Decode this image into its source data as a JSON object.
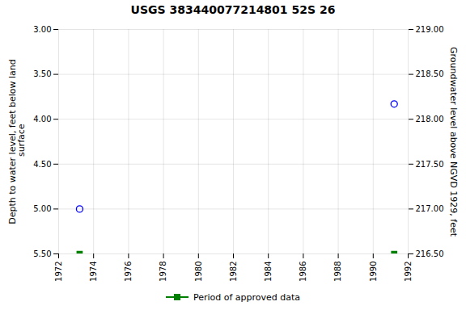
{
  "chart_data": {
    "type": "scatter",
    "title": "USGS 383440077214801 52S 26",
    "ylabel": "Depth to water level, feet below land\n surface",
    "y2label": "Groundwater level above NGVD 1929, feet",
    "x": [
      1973.2,
      1991.2
    ],
    "series": [
      {
        "color": "#0000ff",
        "marker": "circle",
        "values": [
          5.0,
          3.83
        ]
      },
      {
        "name": "Period of approved data",
        "color": "#008000",
        "marker": "square",
        "values": [
          5.5,
          5.5
        ]
      }
    ],
    "xlim": [
      1972,
      1992
    ],
    "xticks": [
      1972,
      1974,
      1976,
      1978,
      1980,
      1982,
      1984,
      1986,
      1988,
      1990,
      1992
    ],
    "ylim": [
      5.5,
      3.0
    ],
    "yticks": [
      {
        "value": 3.0,
        "label": "3.00"
      },
      {
        "value": 3.5,
        "label": "3.50"
      },
      {
        "value": 4.0,
        "label": "4.00"
      },
      {
        "value": 4.5,
        "label": "4.50"
      },
      {
        "value": 5.0,
        "label": "5.00"
      },
      {
        "value": 5.5,
        "label": "5.50"
      }
    ],
    "y2lim": [
      216.5,
      219.0
    ],
    "y2ticks": [
      {
        "value": 219.0,
        "label": "219.00"
      },
      {
        "value": 218.5,
        "label": "218.50"
      },
      {
        "value": 218.0,
        "label": "218.00"
      },
      {
        "value": 217.5,
        "label": "217.50"
      },
      {
        "value": 217.0,
        "label": "217.00"
      },
      {
        "value": 216.5,
        "label": "216.50"
      }
    ],
    "grid": true,
    "legend": "bottom"
  }
}
